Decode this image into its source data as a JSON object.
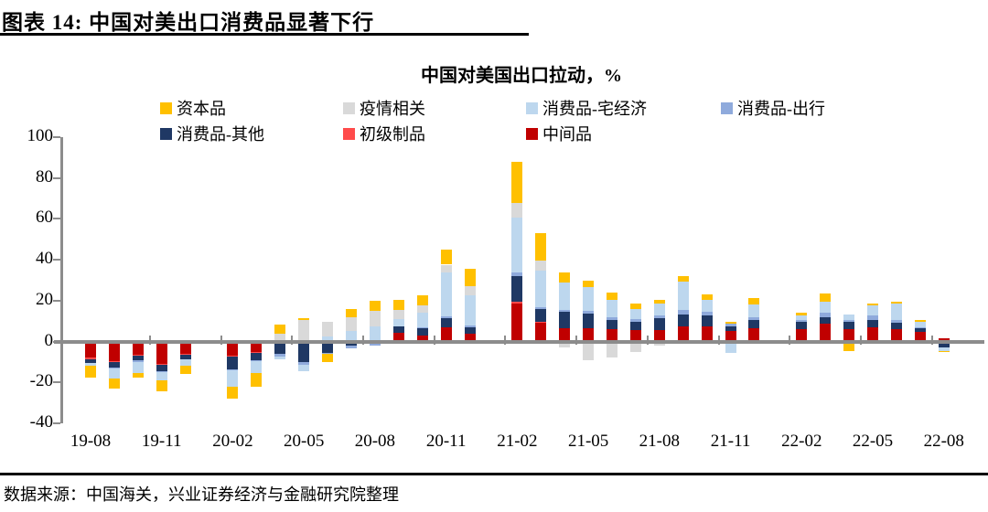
{
  "header": {
    "title": "图表 14: 中国对美出口消费品显著下行"
  },
  "footer": {
    "source": "数据来源：中国海关，兴业证券经济与金融研究院整理"
  },
  "axis_color": "#8C8C8C",
  "chart_data": {
    "type": "bar",
    "stacked": true,
    "title": "中国对美国出口拉动，%",
    "grid": false,
    "legend_position": "top-left-two-rows",
    "ylim": [
      -40,
      100
    ],
    "yticks": [
      100,
      80,
      60,
      40,
      20,
      0,
      -20,
      -40
    ],
    "categories": [
      "19-08",
      "19-09",
      "19-10",
      "19-11",
      "19-12",
      "20-01",
      "20-02",
      "20-03",
      "20-04",
      "20-05",
      "20-06",
      "20-07",
      "20-08",
      "20-09",
      "20-10",
      "20-11",
      "20-12",
      "21-01",
      "21-02",
      "21-03",
      "21-04",
      "21-05",
      "21-06",
      "21-07",
      "21-08",
      "21-09",
      "21-10",
      "21-11",
      "21-12",
      "22-01",
      "22-02",
      "22-03",
      "22-04",
      "22-05",
      "22-06",
      "22-07",
      "22-08"
    ],
    "x_axis_labels_shown": [
      "19-08",
      "19-11",
      "20-02",
      "20-05",
      "20-08",
      "20-11",
      "21-02",
      "21-05",
      "21-08",
      "21-11",
      "22-02",
      "22-05",
      "22-08"
    ],
    "legend_order": [
      "资本品",
      "疫情相关",
      "消费品-宅经济",
      "消费品-出行",
      "消费品-其他",
      "初级制品",
      "中间品"
    ],
    "series": [
      {
        "name": "中间品",
        "color": "#C00000",
        "values": [
          -8,
          -9.5,
          -6.5,
          -11,
          -6,
          0,
          -7,
          -5,
          -1,
          -0.5,
          -0.5,
          0,
          0.5,
          4.5,
          3,
          7,
          3.7,
          0,
          18.7,
          9,
          6.5,
          6.5,
          6,
          5.5,
          5.8,
          7.6,
          7.3,
          5,
          6.5,
          0,
          6.2,
          8.6,
          5.9,
          7.1,
          5.9,
          4.6,
          1.5
        ]
      },
      {
        "name": "初级制品",
        "color": "#FF4B4B",
        "values": [
          -0.5,
          -0.5,
          -0.5,
          -0.5,
          -0.5,
          0,
          -0.5,
          -0.5,
          0,
          0,
          0,
          0,
          0,
          0,
          0,
          0,
          0,
          0,
          1,
          0.5,
          0,
          0,
          0,
          0,
          0,
          0,
          0,
          0,
          0,
          0,
          0,
          0,
          0,
          0,
          0,
          0,
          0
        ]
      },
      {
        "name": "消费品-其他",
        "color": "#1F3864",
        "values": [
          -2,
          -2.5,
          -2,
          -3,
          -2,
          0,
          -6,
          -3.5,
          -5,
          -9.5,
          -5,
          -2,
          0,
          3,
          3.4,
          4.4,
          3.3,
          0,
          12.2,
          6.2,
          7.9,
          7,
          4.4,
          4,
          5.6,
          5.6,
          5.5,
          2.6,
          4.2,
          0,
          3.4,
          3.5,
          3.7,
          3.6,
          3.3,
          1.9,
          -2.7
        ]
      },
      {
        "name": "消费品-出行",
        "color": "#8FAADC",
        "values": [
          0,
          -0.5,
          -1,
          -0.5,
          0,
          0,
          -0.5,
          -0.5,
          -1.5,
          -1.5,
          -0.5,
          -1.5,
          -2,
          0,
          0.5,
          1,
          1,
          0,
          2,
          1,
          1,
          1.5,
          1.5,
          1.5,
          1.5,
          2.2,
          1.9,
          1.3,
          1.2,
          0,
          1,
          2,
          1,
          1.9,
          1.5,
          0.5,
          -0.3
        ]
      },
      {
        "name": "消费品-宅经济",
        "color": "#BDD7EE",
        "values": [
          -1.5,
          -5,
          -5.5,
          -4,
          -3.5,
          0,
          -8,
          -6,
          -1,
          -3,
          2.3,
          5,
          7,
          3.7,
          7,
          21.2,
          14.8,
          0,
          26.7,
          18,
          13.3,
          11.5,
          8.3,
          5.1,
          5.9,
          13.9,
          5.7,
          -5.5,
          6.2,
          0,
          2.3,
          5.2,
          2.6,
          4.9,
          7.7,
          2.5,
          -1.5
        ]
      },
      {
        "name": "疫情相关",
        "color": "#D9D9D9",
        "values": [
          0,
          0,
          0,
          0,
          0,
          0,
          0,
          0,
          3.7,
          10.5,
          7.5,
          7,
          7.4,
          4.4,
          3.7,
          4,
          4.4,
          0,
          7.4,
          5,
          -3,
          -9,
          -8,
          -5,
          -2,
          -1,
          -0.5,
          0,
          -0.5,
          0,
          -1,
          0,
          0,
          0,
          0,
          0,
          0
        ]
      },
      {
        "name": "资本品",
        "color": "#FFC000",
        "values": [
          -5.5,
          -5,
          -2,
          -5.5,
          -4,
          0,
          -6,
          -6.5,
          4.4,
          1,
          -4,
          3.7,
          5.2,
          4.8,
          4.8,
          7.4,
          8.2,
          0,
          20,
          13.5,
          4.9,
          3.3,
          3.6,
          2.7,
          1.5,
          2.5,
          2.5,
          0.9,
          3.2,
          0,
          1.4,
          4.1,
          -4.5,
          1,
          1,
          1,
          -0.5
        ]
      }
    ]
  }
}
